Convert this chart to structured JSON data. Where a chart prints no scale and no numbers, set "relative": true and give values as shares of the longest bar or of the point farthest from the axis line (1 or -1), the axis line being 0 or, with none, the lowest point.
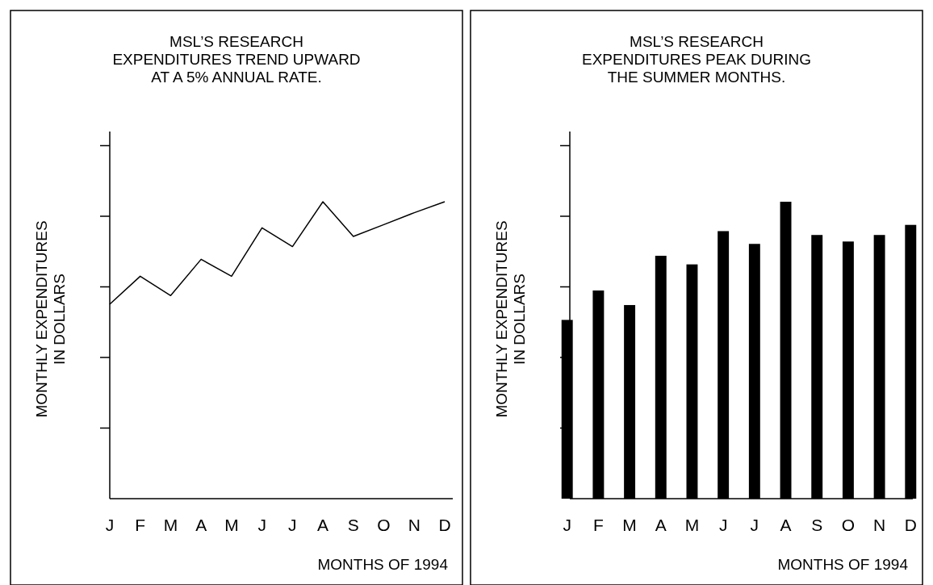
{
  "chart_data": [
    {
      "type": "line",
      "title": "MSL’S RESEARCH\nEXPENDITURES TREND UPWARD\nAT A 5% ANNUAL RATE.",
      "xlabel": "MONTHS OF 1994",
      "ylabel": "MONTHLY EXPENDITURES\nIN DOLLARS",
      "relative": true,
      "categories": [
        "J",
        "F",
        "M",
        "A",
        "M",
        "J",
        "J",
        "A",
        "S",
        "O",
        "N",
        "D"
      ],
      "series": [
        {
          "color": "#000000",
          "values": [
            0.655,
            0.749,
            0.684,
            0.806,
            0.749,
            0.912,
            0.849,
            1,
            0.883,
            0.923,
            0.963,
            1
          ]
        }
      ]
    },
    {
      "type": "bar",
      "title": "MSL’S RESEARCH\nEXPENDITURES PEAK DURING\nTHE SUMMER MONTHS.",
      "xlabel": "MONTHS OF 1994",
      "ylabel": "MONTHLY EXPENDITURES\nIN DOLLARS",
      "relative": true,
      "categories": [
        "J",
        "F",
        "M",
        "A",
        "M",
        "J",
        "J",
        "A",
        "S",
        "O",
        "N",
        "D"
      ],
      "series": [
        {
          "color": "#000000",
          "values": [
            0.602,
            0.701,
            0.652,
            0.818,
            0.789,
            0.901,
            0.858,
            1,
            0.888,
            0.866,
            0.888,
            0.922
          ]
        }
      ]
    }
  ]
}
